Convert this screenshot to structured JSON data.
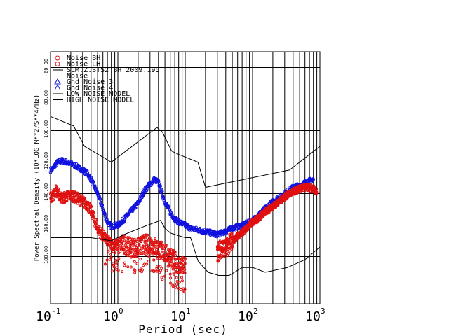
{
  "chart_data": {
    "type": "scatter",
    "title": "",
    "xlabel": "Period (sec)",
    "ylabel": "Power Spectral Density (10*LOG M**2/S**4/Hz)",
    "x_scale": "log",
    "xlim": [
      0.1,
      1000
    ],
    "ylim": [
      -210,
      -50
    ],
    "grid": true,
    "legend_position": "top-left",
    "x_ticks": [
      {
        "base": "10",
        "exp": "-1"
      },
      {
        "base": "10",
        "exp": "0"
      },
      {
        "base": "10",
        "exp": "1"
      },
      {
        "base": "10",
        "exp": "2"
      },
      {
        "base": "10",
        "exp": "3"
      }
    ],
    "y_ticks": [
      "-60.00",
      "-80.00",
      "-100.00",
      "-120.00",
      "-140.00",
      "-160.00",
      "-180.00"
    ],
    "y_tick_values": [
      -60,
      -80,
      -100,
      -120,
      -140,
      -160,
      -180
    ],
    "legend": [
      {
        "label": "Noise BH",
        "symbol": "circle",
        "color": "#e01010"
      },
      {
        "label": "Noise LH",
        "symbol": "circle",
        "color": "#e01010"
      },
      {
        "label": "SLM.Z.STS2 BH  2009.195",
        "symbol": "line",
        "color": "#000000"
      },
      {
        "label": "Noise",
        "symbol": "line",
        "color": "#000000"
      },
      {
        "label": "Gnd Noise 3",
        "symbol": "triangle",
        "color": "#1010e0"
      },
      {
        "label": "Gnd Noise 4",
        "symbol": "triangle",
        "color": "#1010e0"
      },
      {
        "label": "LOW NOISE MODEL",
        "symbol": "line",
        "color": "#000000"
      },
      {
        "label": "HIGH NOISE MODEL",
        "symbol": "line",
        "color": "#000000"
      }
    ],
    "series": [
      {
        "name": "Gnd Noise 3",
        "color": "#1010e0",
        "x": [
          0.1,
          0.11,
          0.12,
          0.13,
          0.15,
          0.17,
          0.2,
          0.25,
          0.3,
          0.35,
          0.4,
          0.5,
          0.6,
          0.7,
          0.8,
          1.0,
          1.2,
          1.5,
          2.0,
          2.5,
          3.0,
          3.5,
          4.0,
          5.0,
          6.0,
          7.0,
          8.0,
          10,
          12,
          15,
          20,
          30,
          40,
          50,
          60,
          70,
          80,
          100,
          150,
          200,
          300,
          400,
          500,
          600,
          700,
          800
        ],
        "y": [
          -125,
          -124,
          -121,
          -120,
          -119,
          -120,
          -121,
          -123,
          -125,
          -127,
          -131,
          -140,
          -150,
          -158,
          -161,
          -160,
          -157,
          -152,
          -146,
          -138,
          -134,
          -131,
          -133,
          -145,
          -152,
          -156,
          -158,
          -160,
          -162,
          -163,
          -164,
          -166,
          -164,
          -162,
          -161,
          -160,
          -159,
          -157,
          -150,
          -145,
          -140,
          -136,
          -135,
          -133,
          -132,
          -131
        ]
      },
      {
        "name": "Noise BH",
        "color": "#e01010",
        "x": [
          0.1,
          0.11,
          0.12,
          0.13,
          0.15,
          0.17,
          0.2,
          0.25,
          0.3,
          0.35,
          0.4,
          0.5,
          0.6,
          0.7,
          0.8,
          1.0,
          1.2,
          1.5,
          2.0,
          2.5,
          3.0,
          4.0,
          5.0,
          6.0,
          7.0,
          8.0,
          9.0,
          10
        ],
        "y": [
          -142,
          -141,
          -138,
          -140,
          -143,
          -142,
          -141,
          -143,
          -145,
          -147,
          -151,
          -162,
          -167,
          -170,
          -172,
          -173,
          -172,
          -174,
          -174,
          -172,
          -172,
          -175,
          -178,
          -180,
          -183,
          -185,
          -186,
          -187
        ]
      },
      {
        "name": "Noise LH",
        "color": "#e01010",
        "x": [
          30,
          35,
          40,
          45,
          50,
          60,
          70,
          80,
          100,
          120,
          150,
          200,
          250,
          300,
          400,
          500,
          600,
          700,
          800,
          900
        ],
        "y": [
          -178,
          -174,
          -175,
          -172,
          -170,
          -167,
          -165,
          -162,
          -158,
          -156,
          -152,
          -148,
          -145,
          -142,
          -139,
          -137,
          -136,
          -136,
          -137,
          -139
        ]
      },
      {
        "name": "LOW NOISE MODEL",
        "color": "#000000",
        "x": [
          0.1,
          0.17,
          0.4,
          0.8,
          1.24,
          2.4,
          4.3,
          5.0,
          6.0,
          10.0,
          12.0,
          15.6,
          21.9,
          31.6,
          45.0,
          70.0,
          101.0,
          154.0,
          328.0,
          600.0,
          1000.0
        ],
        "y": [
          -168,
          -168,
          -168,
          -170,
          -166,
          -161,
          -157,
          -162,
          -165,
          -168,
          -168,
          -183,
          -190,
          -192,
          -192,
          -187,
          -187,
          -190,
          -187,
          -182,
          -174
        ]
      },
      {
        "name": "HIGH NOISE MODEL",
        "color": "#000000",
        "x": [
          0.1,
          0.22,
          0.32,
          0.8,
          3.8,
          4.6,
          6.3,
          7.9,
          15.4,
          20.0,
          354.8,
          1000.0
        ],
        "y": [
          -91,
          -97,
          -110,
          -120,
          -98,
          -101,
          -113,
          -115,
          -120,
          -136,
          -125,
          -110
        ]
      }
    ]
  }
}
